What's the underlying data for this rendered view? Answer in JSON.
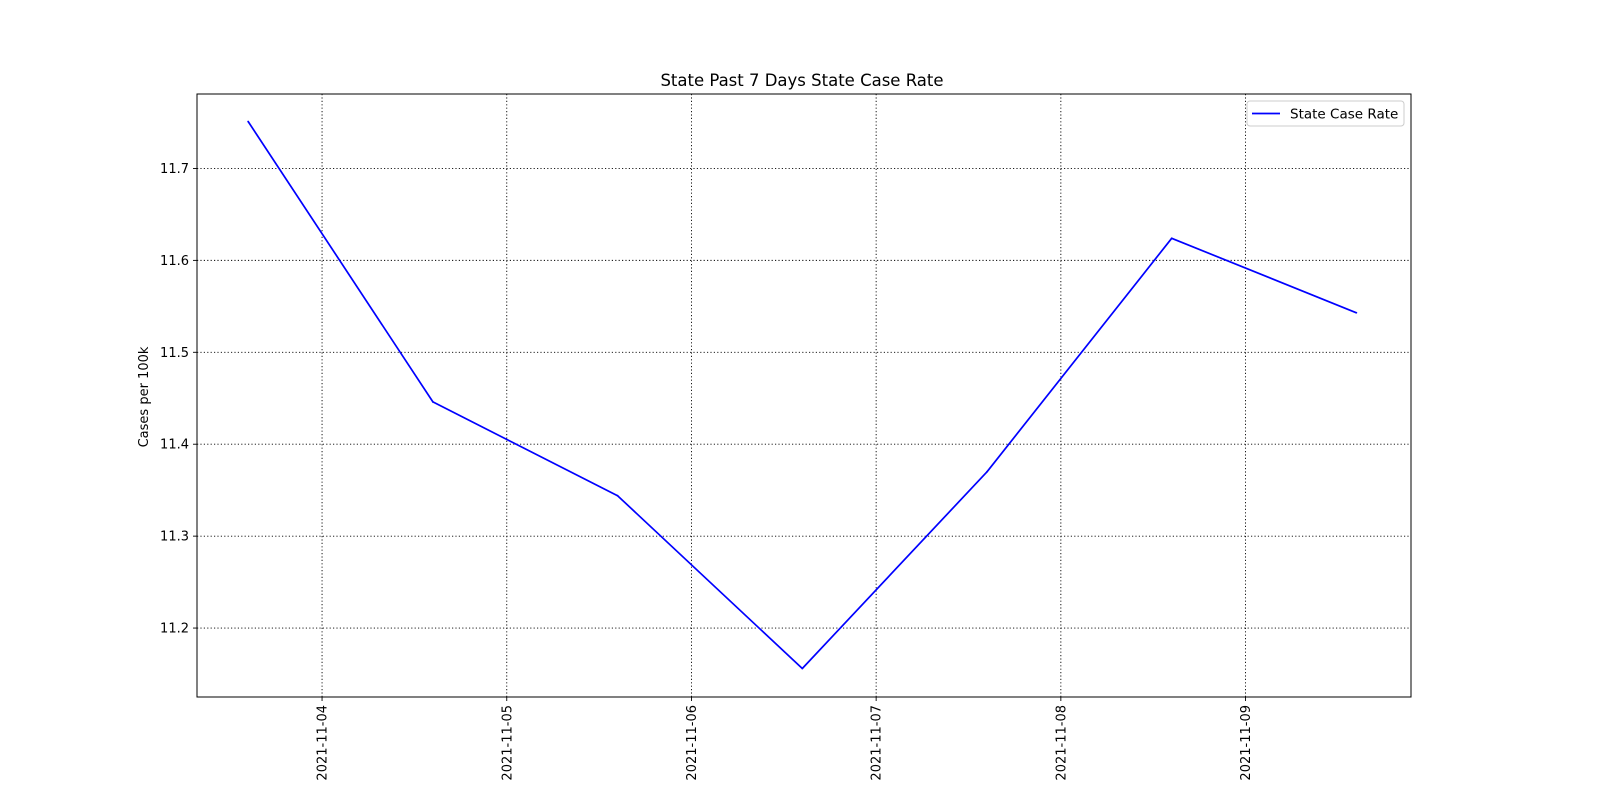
{
  "chart_data": {
    "type": "line",
    "title": "State Past 7 Days State Case Rate",
    "xlabel": "",
    "ylabel": "Cases per 100k",
    "x_ticks": [
      "2021-11-04",
      "2021-11-05",
      "2021-11-06",
      "2021-11-07",
      "2021-11-08",
      "2021-11-09"
    ],
    "y_ticks": [
      "11.2",
      "11.3",
      "11.4",
      "11.5",
      "11.6",
      "11.7"
    ],
    "xlim": [
      "2021-11-03 07:45",
      "2021-11-09 21:30"
    ],
    "ylim": [
      11.125,
      11.781
    ],
    "grid": true,
    "legend_position": "top-right",
    "series": [
      {
        "name": "State Case Rate",
        "color": "#0000ff",
        "x": [
          "2021-11-03 14:24",
          "2021-11-04 14:24",
          "2021-11-05 14:24",
          "2021-11-06 14:24",
          "2021-11-07 14:24",
          "2021-11-08 14:24",
          "2021-11-09 14:24"
        ],
        "values": [
          11.751,
          11.446,
          11.344,
          11.156,
          11.37,
          11.624,
          11.543
        ]
      }
    ]
  }
}
